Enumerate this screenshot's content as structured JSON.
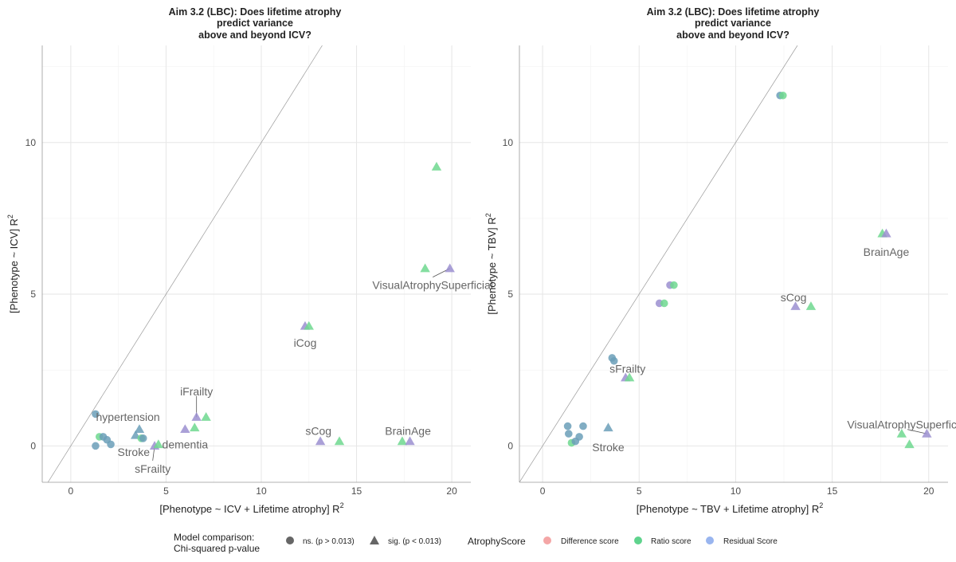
{
  "chart_data": [
    {
      "type": "scatter",
      "title": "Aim 3.2 (LBC): Does lifetime atrophy predict variance above and beyond ICV?",
      "title_lines": [
        "Aim 3.2 (LBC): Does lifetime atrophy",
        "predict variance",
        "above and beyond ICV?"
      ],
      "xlabel": "[Phenotype ~ ICV + Lifetime atrophy]  R",
      "ylabel": "[Phenotype ~ ICV] R",
      "label_superscript": "2",
      "xlim": [
        -1.5,
        21
      ],
      "ylim": [
        -1.2,
        13.2
      ],
      "xticks": [
        0,
        5,
        10,
        15,
        20
      ],
      "yticks": [
        0,
        5,
        10
      ],
      "grid": true,
      "reference_line": "y = x",
      "points": [
        {
          "x": 1.3,
          "y": 1.05,
          "score": "Residual Score",
          "shape": "circle"
        },
        {
          "x": 1.3,
          "y": 0.0,
          "score": "Residual Score",
          "shape": "circle"
        },
        {
          "x": 1.5,
          "y": 0.3,
          "score": "Ratio score",
          "shape": "circle"
        },
        {
          "x": 1.7,
          "y": 0.3,
          "score": "Residual Score",
          "shape": "circle"
        },
        {
          "x": 1.9,
          "y": 0.2,
          "score": "Residual Score",
          "shape": "circle"
        },
        {
          "x": 2.1,
          "y": 0.05,
          "score": "Residual Score",
          "shape": "circle"
        },
        {
          "x": 3.4,
          "y": 0.35,
          "score": "Residual Score",
          "shape": "triangle"
        },
        {
          "x": 3.6,
          "y": 0.55,
          "score": "Residual Score",
          "shape": "triangle"
        },
        {
          "x": 3.7,
          "y": 0.25,
          "score": "Ratio score",
          "shape": "circle"
        },
        {
          "x": 3.8,
          "y": 0.25,
          "score": "Residual Score",
          "shape": "circle"
        },
        {
          "x": 4.4,
          "y": 0.0,
          "score": "Difference score",
          "shape": "triangle"
        },
        {
          "x": 4.6,
          "y": 0.05,
          "score": "Ratio score",
          "shape": "triangle"
        },
        {
          "x": 6.0,
          "y": 0.55,
          "score": "Difference score",
          "shape": "triangle"
        },
        {
          "x": 6.5,
          "y": 0.6,
          "score": "Ratio score",
          "shape": "triangle"
        },
        {
          "x": 6.6,
          "y": 0.95,
          "score": "Difference score",
          "shape": "triangle"
        },
        {
          "x": 7.1,
          "y": 0.95,
          "score": "Ratio score",
          "shape": "triangle"
        },
        {
          "x": 12.3,
          "y": 3.95,
          "score": "Difference score",
          "shape": "triangle"
        },
        {
          "x": 12.5,
          "y": 3.95,
          "score": "Ratio score",
          "shape": "triangle"
        },
        {
          "x": 13.1,
          "y": 0.15,
          "score": "Difference score",
          "shape": "triangle"
        },
        {
          "x": 14.1,
          "y": 0.15,
          "score": "Ratio score",
          "shape": "triangle"
        },
        {
          "x": 17.4,
          "y": 0.15,
          "score": "Ratio score",
          "shape": "triangle"
        },
        {
          "x": 17.8,
          "y": 0.15,
          "score": "Difference score",
          "shape": "triangle"
        },
        {
          "x": 18.6,
          "y": 5.85,
          "score": "Ratio score",
          "shape": "triangle"
        },
        {
          "x": 19.2,
          "y": 9.2,
          "score": "Ratio score",
          "shape": "triangle"
        },
        {
          "x": 19.9,
          "y": 5.85,
          "score": "Difference score",
          "shape": "triangle"
        }
      ],
      "labels": [
        {
          "text": "hypertension",
          "x": 1.8,
          "y": 0.95,
          "px": 3.0,
          "py": 0.95
        },
        {
          "text": "Stroke",
          "x": 3.4,
          "y": 0.35,
          "px": 3.3,
          "py": -0.2
        },
        {
          "text": "dementia",
          "x": 4.5,
          "y": 0.05,
          "px": 6.0,
          "py": 0.05
        },
        {
          "text": "sFrailty",
          "x": 4.4,
          "y": 0.0,
          "px": 4.3,
          "py": -0.75,
          "leader": true
        },
        {
          "text": "iFrailty",
          "x": 6.6,
          "y": 0.95,
          "px": 6.6,
          "py": 1.8,
          "leader": true
        },
        {
          "text": "iCog",
          "x": 12.4,
          "y": 3.95,
          "px": 12.3,
          "py": 3.4
        },
        {
          "text": "sCog",
          "x": 13.1,
          "y": 0.15,
          "px": 13.0,
          "py": 0.5
        },
        {
          "text": "BrainAge",
          "x": 17.6,
          "y": 0.15,
          "px": 17.7,
          "py": 0.5
        },
        {
          "text": "VisualAtrophySuperficial",
          "x": 19.9,
          "y": 5.85,
          "px": 19.0,
          "py": 5.3,
          "leader": true
        }
      ]
    },
    {
      "type": "scatter",
      "title": "Aim 3.2 (LBC): Does lifetime atrophy predict variance above and beyond ICV?",
      "title_lines": [
        "Aim 3.2 (LBC): Does lifetime atrophy",
        "predict variance",
        "above and beyond ICV?"
      ],
      "xlabel": "[Phenotype ~ TBV + Lifetime atrophy]  R",
      "ylabel": "[Phenotype ~ TBV] R",
      "label_superscript": "2",
      "xlim": [
        -1.2,
        21
      ],
      "ylim": [
        -1.2,
        13.2
      ],
      "xticks": [
        0,
        5,
        10,
        15,
        20
      ],
      "yticks": [
        0,
        5,
        10
      ],
      "grid": true,
      "reference_line": "y = x",
      "points": [
        {
          "x": 12.3,
          "y": 11.55,
          "score": "Residual Score",
          "shape": "circle"
        },
        {
          "x": 12.45,
          "y": 11.55,
          "score": "Ratio score",
          "shape": "circle"
        },
        {
          "x": 17.6,
          "y": 7.0,
          "score": "Ratio score",
          "shape": "triangle"
        },
        {
          "x": 17.8,
          "y": 7.0,
          "score": "Difference score",
          "shape": "triangle"
        },
        {
          "x": 6.6,
          "y": 5.3,
          "score": "Difference score",
          "shape": "circle"
        },
        {
          "x": 6.8,
          "y": 5.3,
          "score": "Ratio score",
          "shape": "circle"
        },
        {
          "x": 6.05,
          "y": 4.7,
          "score": "Difference score",
          "shape": "circle"
        },
        {
          "x": 6.3,
          "y": 4.7,
          "score": "Ratio score",
          "shape": "circle"
        },
        {
          "x": 13.1,
          "y": 4.6,
          "score": "Difference score",
          "shape": "triangle"
        },
        {
          "x": 13.9,
          "y": 4.6,
          "score": "Ratio score",
          "shape": "triangle"
        },
        {
          "x": 3.6,
          "y": 2.9,
          "score": "Residual Score",
          "shape": "circle"
        },
        {
          "x": 3.7,
          "y": 2.8,
          "score": "Residual Score",
          "shape": "circle"
        },
        {
          "x": 4.3,
          "y": 2.25,
          "score": "Difference score",
          "shape": "triangle"
        },
        {
          "x": 4.5,
          "y": 2.25,
          "score": "Ratio score",
          "shape": "triangle"
        },
        {
          "x": 1.3,
          "y": 0.65,
          "score": "Residual Score",
          "shape": "circle"
        },
        {
          "x": 1.35,
          "y": 0.4,
          "score": "Residual Score",
          "shape": "circle"
        },
        {
          "x": 1.5,
          "y": 0.1,
          "score": "Ratio score",
          "shape": "circle"
        },
        {
          "x": 1.7,
          "y": 0.15,
          "score": "Residual Score",
          "shape": "circle"
        },
        {
          "x": 1.9,
          "y": 0.3,
          "score": "Residual Score",
          "shape": "circle"
        },
        {
          "x": 2.1,
          "y": 0.65,
          "score": "Residual Score",
          "shape": "circle"
        },
        {
          "x": 3.4,
          "y": 0.6,
          "score": "Residual Score",
          "shape": "triangle"
        },
        {
          "x": 18.6,
          "y": 0.4,
          "score": "Ratio score",
          "shape": "triangle"
        },
        {
          "x": 19.0,
          "y": 0.05,
          "score": "Ratio score",
          "shape": "triangle"
        },
        {
          "x": 19.9,
          "y": 0.4,
          "score": "Difference score",
          "shape": "triangle"
        }
      ],
      "labels": [
        {
          "text": "BrainAge",
          "x": 17.7,
          "y": 7.0,
          "px": 17.8,
          "py": 6.4
        },
        {
          "text": "sCog",
          "x": 13.1,
          "y": 4.6,
          "px": 13.0,
          "py": 4.9
        },
        {
          "text": "sFrailty",
          "x": 3.7,
          "y": 2.8,
          "px": 4.4,
          "py": 2.55
        },
        {
          "text": "Stroke",
          "x": 1.9,
          "y": 0.3,
          "px": 3.4,
          "py": -0.05
        },
        {
          "text": "VisualAtrophySuperficial",
          "x": 19.9,
          "y": 0.4,
          "px": 18.9,
          "py": 0.7,
          "leader": true
        }
      ]
    }
  ],
  "legend": {
    "model_title_lines": [
      "Model comparison:",
      "Chi-squared p-value"
    ],
    "model_items": [
      {
        "label": "ns. (p > 0.013)",
        "shape": "circle"
      },
      {
        "label": "sig. (p < 0.013)",
        "shape": "triangle"
      }
    ],
    "score_title": "AtrophyScore",
    "score_items": [
      {
        "label": "Difference score",
        "color": "#f4a6a6"
      },
      {
        "label": "Ratio score",
        "color": "#5fd38d"
      },
      {
        "label": "Residual Score",
        "color": "#99b5ef"
      }
    ]
  },
  "colors": {
    "Difference score": "#9b8fd0",
    "Ratio score": "#6fd88f",
    "Residual Score": "#6b9fb8",
    "shape_key": "#666666"
  }
}
